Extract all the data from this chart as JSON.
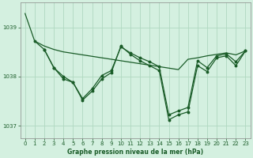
{
  "xlabel": "Graphe pression niveau de la mer (hPa)",
  "bg_color": "#d4f0e0",
  "grid_color": "#b0d8c0",
  "line_color": "#1a5c28",
  "ylim": [
    1036.75,
    1039.5
  ],
  "xlim": [
    -0.5,
    23.5
  ],
  "yticks": [
    1037,
    1038,
    1039
  ],
  "xticks": [
    0,
    1,
    2,
    3,
    4,
    5,
    6,
    7,
    8,
    9,
    10,
    11,
    12,
    13,
    14,
    15,
    16,
    17,
    18,
    19,
    20,
    21,
    22,
    23
  ],
  "series1_x": [
    0,
    1,
    2,
    3,
    4,
    5,
    6,
    7,
    8,
    9,
    10,
    11,
    12,
    13,
    14,
    15,
    16,
    17,
    18,
    19,
    20,
    21,
    22,
    23
  ],
  "series1_y": [
    1039.28,
    1038.72,
    1038.62,
    1038.55,
    1038.5,
    1038.47,
    1038.44,
    1038.41,
    1038.38,
    1038.35,
    1038.32,
    1038.29,
    1038.26,
    1038.23,
    1038.2,
    1038.17,
    1038.14,
    1038.35,
    1038.38,
    1038.42,
    1038.45,
    1038.48,
    1038.44,
    1038.52
  ],
  "series2_x": [
    1,
    2,
    3,
    4,
    5,
    6,
    7,
    8,
    9,
    10,
    11,
    12,
    13,
    14,
    15,
    16,
    17,
    18,
    19,
    20,
    21,
    22,
    23
  ],
  "series2_y": [
    1038.72,
    1038.55,
    1038.18,
    1038.0,
    1037.88,
    1037.55,
    1037.75,
    1038.02,
    1038.12,
    1038.6,
    1038.48,
    1038.38,
    1038.3,
    1038.2,
    1037.22,
    1037.3,
    1037.37,
    1038.32,
    1038.18,
    1038.42,
    1038.46,
    1038.3,
    1038.52
  ],
  "series3_x": [
    2,
    3,
    4,
    5,
    6,
    7,
    8,
    9,
    10,
    11,
    12,
    13,
    14,
    15,
    16,
    17,
    18,
    19,
    20,
    21,
    22,
    23
  ],
  "series3_y": [
    1038.55,
    1038.18,
    1037.95,
    1037.88,
    1037.52,
    1037.7,
    1037.95,
    1038.08,
    1038.62,
    1038.45,
    1038.32,
    1038.22,
    1038.12,
    1037.12,
    1037.22,
    1037.28,
    1038.22,
    1038.1,
    1038.38,
    1038.42,
    1038.22,
    1038.52
  ],
  "tick_fontsize": 5.0,
  "xlabel_fontsize": 5.5,
  "spine_color": "#888888"
}
